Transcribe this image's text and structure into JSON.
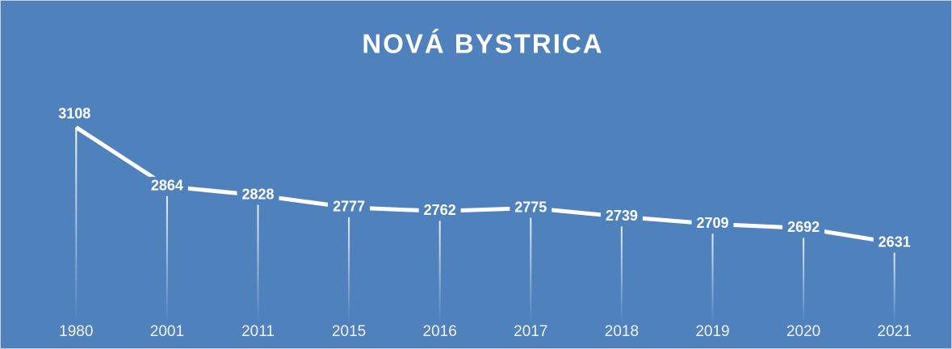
{
  "chart_data": {
    "type": "line",
    "title": "NOVÁ BYSTRICA",
    "categories": [
      "1980",
      "2001",
      "2011",
      "2015",
      "2016",
      "2017",
      "2018",
      "2019",
      "2020",
      "2021"
    ],
    "values": [
      3108,
      2864,
      2828,
      2777,
      2762,
      2775,
      2739,
      2709,
      2692,
      2631
    ],
    "color": "#ffffff",
    "background": "#4f81bd",
    "ylim": [
      2300,
      3300
    ],
    "drop_lines": true,
    "data_labels": true
  }
}
